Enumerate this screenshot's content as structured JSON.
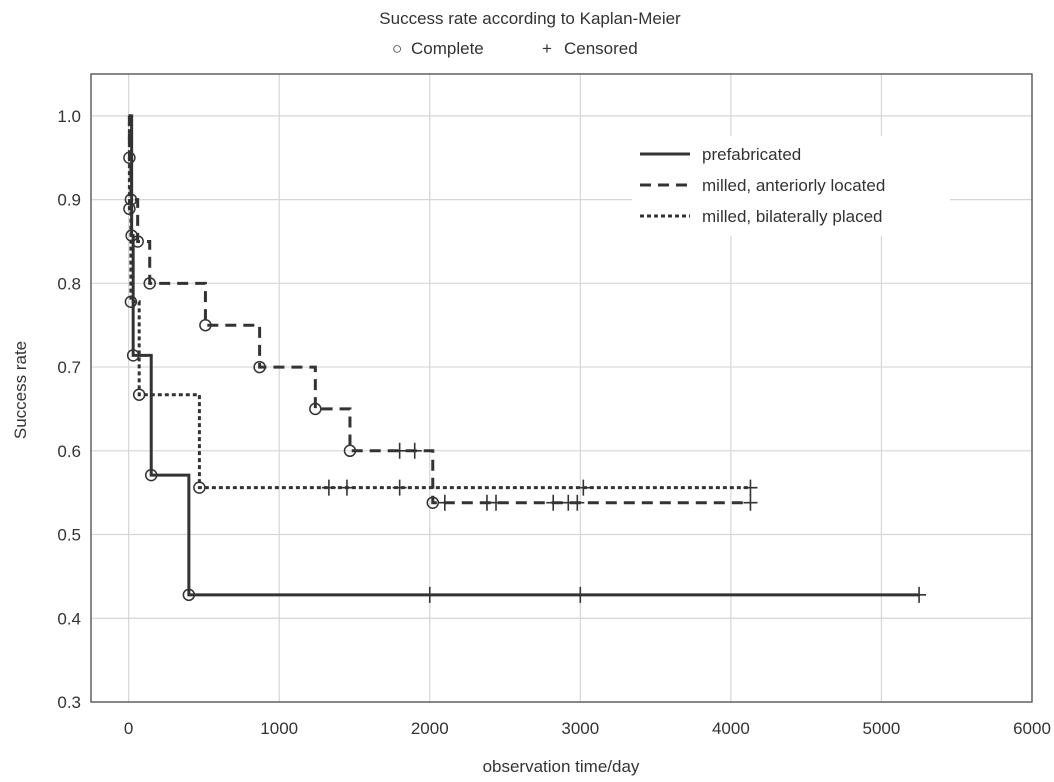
{
  "chart_data": {
    "type": "line",
    "title": "Success rate according to Kaplan-Meier",
    "subtitle_marks": [
      {
        "symbol": "○",
        "label": "Complete"
      },
      {
        "symbol": "+",
        "label": "Censored"
      }
    ],
    "xlabel": "observation time/day",
    "ylabel": "Success rate",
    "xlim": [
      -250,
      6000
    ],
    "ylim": [
      0.3,
      1.05
    ],
    "x_ticks": [
      0,
      1000,
      2000,
      3000,
      4000,
      5000,
      6000
    ],
    "x_tick_labels": [
      "0",
      "1000",
      "2000",
      "3000",
      "4000",
      "5000",
      "6000"
    ],
    "y_ticks": [
      0.3,
      0.4,
      0.5,
      0.6,
      0.7,
      0.8,
      0.9,
      1.0
    ],
    "y_tick_labels": [
      "0.3",
      "0.4",
      "0.5",
      "0.6",
      "0.7",
      "0.8",
      "0.9",
      "1.0"
    ],
    "grid": true,
    "legend_position": "top-right",
    "series": [
      {
        "name": "prefabricated",
        "style": "solid",
        "color": "#333333",
        "steps": [
          [
            0,
            1.0
          ],
          [
            20,
            0.857
          ],
          [
            30,
            0.714
          ],
          [
            150,
            0.571
          ],
          [
            400,
            0.428
          ],
          [
            5250,
            0.428
          ]
        ],
        "events": [
          [
            20,
            0.857
          ],
          [
            30,
            0.714
          ],
          [
            150,
            0.571
          ],
          [
            400,
            0.428
          ]
        ],
        "censored": [
          [
            2000,
            0.428
          ],
          [
            3000,
            0.428
          ],
          [
            5250,
            0.428
          ]
        ]
      },
      {
        "name": "milled, anteriorly located",
        "style": "dashed",
        "color": "#333333",
        "steps": [
          [
            0,
            1.0
          ],
          [
            5,
            0.95
          ],
          [
            15,
            0.9
          ],
          [
            60,
            0.85
          ],
          [
            140,
            0.8
          ],
          [
            510,
            0.75
          ],
          [
            870,
            0.7
          ],
          [
            1240,
            0.65
          ],
          [
            1470,
            0.6
          ],
          [
            2020,
            0.538
          ],
          [
            4130,
            0.538
          ]
        ],
        "events": [
          [
            5,
            0.95
          ],
          [
            15,
            0.9
          ],
          [
            60,
            0.85
          ],
          [
            140,
            0.8
          ],
          [
            510,
            0.75
          ],
          [
            870,
            0.7
          ],
          [
            1240,
            0.65
          ],
          [
            1470,
            0.6
          ],
          [
            2020,
            0.538
          ]
        ],
        "censored": [
          [
            1800,
            0.6
          ],
          [
            1900,
            0.6
          ],
          [
            2100,
            0.538
          ],
          [
            2380,
            0.538
          ],
          [
            2440,
            0.538
          ],
          [
            2820,
            0.538
          ],
          [
            2920,
            0.538
          ],
          [
            2980,
            0.538
          ],
          [
            4130,
            0.538
          ]
        ]
      },
      {
        "name": "milled, bilaterally placed",
        "style": "dotted",
        "color": "#333333",
        "steps": [
          [
            0,
            1.0
          ],
          [
            5,
            0.889
          ],
          [
            15,
            0.778
          ],
          [
            70,
            0.667
          ],
          [
            470,
            0.556
          ],
          [
            4130,
            0.556
          ]
        ],
        "events": [
          [
            5,
            0.889
          ],
          [
            15,
            0.778
          ],
          [
            70,
            0.667
          ],
          [
            470,
            0.556
          ]
        ],
        "censored": [
          [
            1330,
            0.556
          ],
          [
            1450,
            0.556
          ],
          [
            1800,
            0.556
          ],
          [
            3020,
            0.556
          ],
          [
            4130,
            0.556
          ]
        ]
      }
    ]
  }
}
